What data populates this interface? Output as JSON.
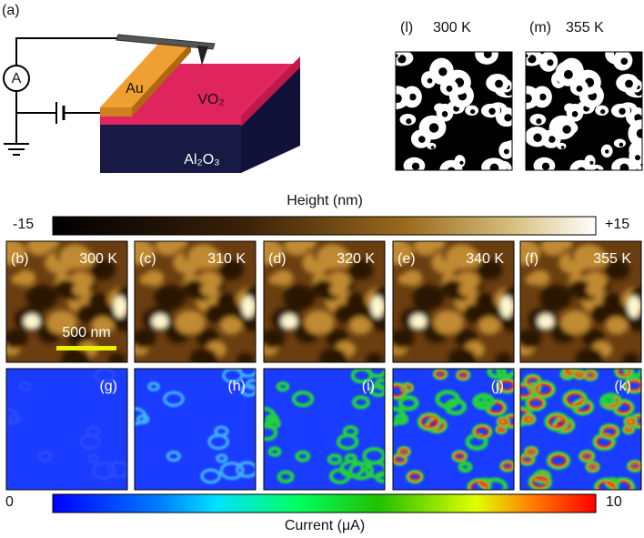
{
  "schematic": {
    "label": "(a)",
    "ammeter": "A",
    "electrode": "Au",
    "film": "VO₂",
    "substrate": "Al₂O₃"
  },
  "masks": [
    {
      "label": "(l)",
      "temperature": "300 K"
    },
    {
      "label": "(m)",
      "temperature": "355 K"
    }
  ],
  "height_scale": {
    "title": "Height (nm)",
    "min": "-15",
    "max": "+15"
  },
  "height_panels": [
    {
      "label": "(b)",
      "temperature": "300 K"
    },
    {
      "label": "(c)",
      "temperature": "310 K"
    },
    {
      "label": "(d)",
      "temperature": "320 K"
    },
    {
      "label": "(e)",
      "temperature": "340 K"
    },
    {
      "label": "(f)",
      "temperature": "355 K"
    }
  ],
  "scale_bar": "500 nm",
  "current_panels": [
    {
      "label": "(g)"
    },
    {
      "label": "(h)"
    },
    {
      "label": "(i)"
    },
    {
      "label": "(j)"
    },
    {
      "label": "(k)"
    }
  ],
  "current_scale": {
    "title": "Current (μA)",
    "min": "0",
    "max": "10"
  }
}
